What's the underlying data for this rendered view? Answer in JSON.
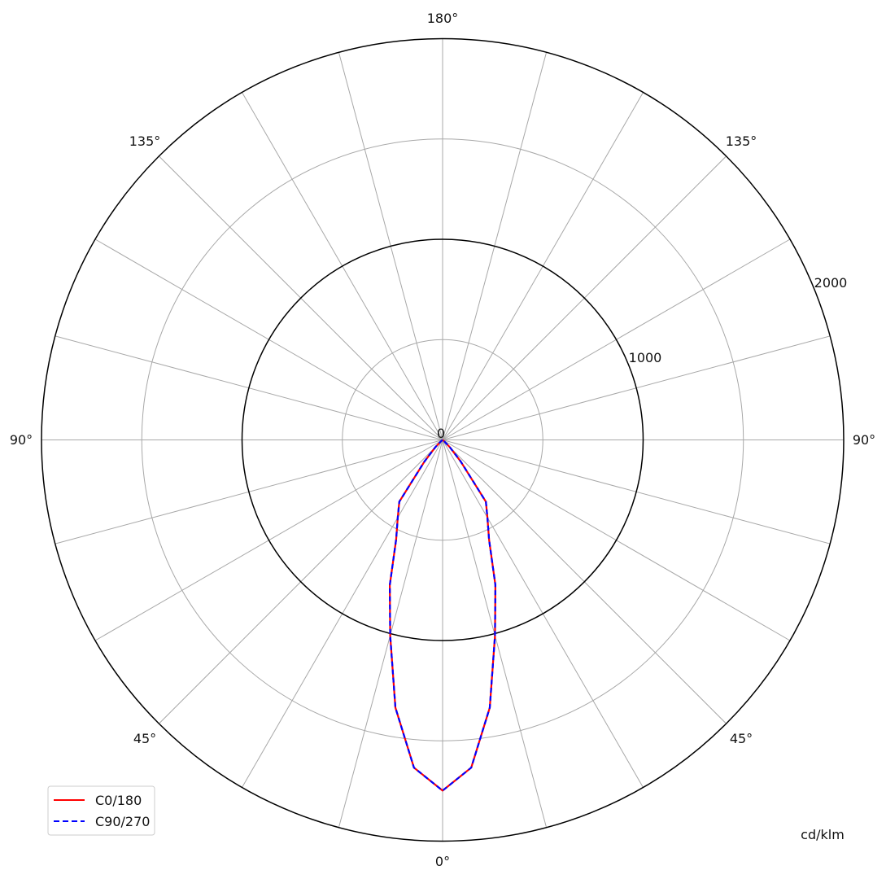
{
  "chart_data": {
    "type": "polar",
    "unit_label": "cd/klm",
    "rlim": [
      0,
      2000
    ],
    "ring_values": [
      500,
      1000,
      1500,
      2000
    ],
    "ring_labels": [
      "0",
      "1000",
      "2000"
    ],
    "angle_labels": {
      "top": "180°",
      "upper_left": "135°",
      "upper_right": "135°",
      "left": "90°",
      "right": "90°",
      "lower_left": "45°",
      "lower_right": "45°",
      "bottom": "0°"
    },
    "grid": true,
    "spoke_step_deg": 15,
    "legend_position": "bottom-left",
    "gamma_deg": [
      0,
      5,
      10,
      15,
      20,
      25,
      30,
      35,
      40,
      45,
      50,
      55,
      60,
      65,
      70,
      75,
      80,
      85,
      90
    ],
    "series": [
      {
        "name": "C0/180",
        "color": "#ff0000",
        "style": "solid",
        "values": [
          1748,
          1640,
          1355,
          1010,
          770,
          548,
          447,
          376,
          140,
          50,
          10,
          0,
          0,
          0,
          0,
          0,
          0,
          0,
          0
        ]
      },
      {
        "name": "C90/270",
        "color": "#0000ff",
        "style": "dashed",
        "values": [
          1748,
          1640,
          1355,
          1010,
          770,
          548,
          447,
          376,
          140,
          50,
          10,
          0,
          0,
          0,
          0,
          0,
          0,
          0,
          0
        ]
      }
    ]
  }
}
